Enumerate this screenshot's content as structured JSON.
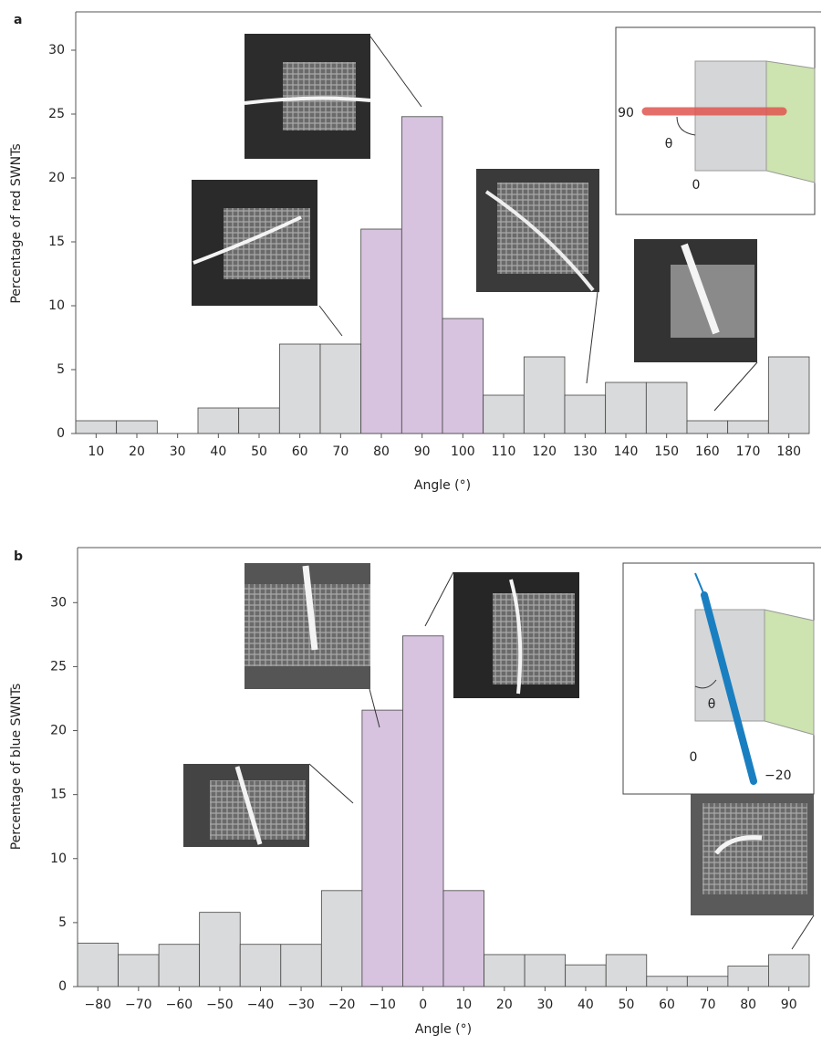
{
  "chart_data": [
    {
      "type": "bar",
      "panel": "a",
      "x_label": "Angle (°)",
      "y_label": "Percentage of red SWNTs",
      "categories": [
        "10",
        "20",
        "30",
        "40",
        "50",
        "60",
        "70",
        "80",
        "90",
        "100",
        "110",
        "120",
        "130",
        "140",
        "150",
        "160",
        "170",
        "180"
      ],
      "values": [
        1,
        1,
        0,
        2,
        2,
        7,
        7,
        16,
        24.8,
        9,
        3,
        6,
        3,
        4,
        4,
        1,
        1,
        6
      ],
      "colors": [
        "#d9dadb",
        "#d9dadb",
        "#d9dadb",
        "#d9dadb",
        "#d9dadb",
        "#d9dadb",
        "#d9dadb",
        "#d7c3df",
        "#d7c3df",
        "#d7c3df",
        "#d9dadb",
        "#d9dadb",
        "#d9dadb",
        "#d9dadb",
        "#d9dadb",
        "#d9dadb",
        "#d9dadb",
        "#d9dadb"
      ],
      "ylim": [
        0,
        33
      ],
      "yticks": [
        0,
        5,
        10,
        15,
        20,
        25,
        30
      ],
      "annotations": [
        "90",
        "θ",
        "0"
      ]
    },
    {
      "type": "bar",
      "panel": "b",
      "x_label": "Angle (°)",
      "y_label": "Percentage of blue SWNTs",
      "categories": [
        "−80",
        "−70",
        "−60",
        "−50",
        "−40",
        "−30",
        "−20",
        "−10",
        "0",
        "10",
        "20",
        "30",
        "40",
        "50",
        "60",
        "70",
        "80",
        "90"
      ],
      "values": [
        3.4,
        2.5,
        3.3,
        5.8,
        3.3,
        3.3,
        7.5,
        21.6,
        27.4,
        7.5,
        2.5,
        2.5,
        1.7,
        2.5,
        0.8,
        0.8,
        1.6,
        2.5
      ],
      "colors": [
        "#d9dadb",
        "#d9dadb",
        "#d9dadb",
        "#d9dadb",
        "#d9dadb",
        "#d9dadb",
        "#d9dadb",
        "#d7c3df",
        "#d7c3df",
        "#d7c3df",
        "#d9dadb",
        "#d9dadb",
        "#d9dadb",
        "#d9dadb",
        "#d9dadb",
        "#d9dadb",
        "#d9dadb",
        "#d9dadb"
      ],
      "ylim": [
        0,
        34.3
      ],
      "yticks": [
        0,
        5,
        10,
        15,
        20,
        25,
        30
      ],
      "annotations": [
        "θ",
        "0",
        "−20"
      ]
    }
  ]
}
